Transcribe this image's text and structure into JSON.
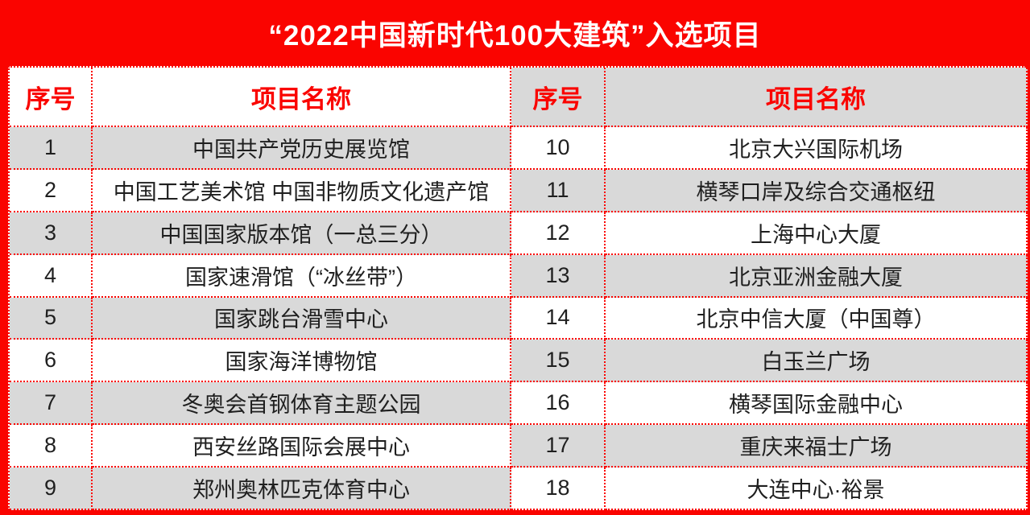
{
  "title": "“2022中国新时代100大建筑”入选项目",
  "colors": {
    "banner_red": "#fa0400",
    "border_red": "#fa0400",
    "band_gray": "#d9d9d9",
    "cell_white": "#ffffff",
    "header_text_red": "#fa0400",
    "body_text": "#1f1f1f",
    "title_text": "#ffffff"
  },
  "table": {
    "left": {
      "headers": {
        "index": "序号",
        "name": "项目名称"
      },
      "rows": [
        {
          "no": "1",
          "name": "中国共产党历史展览馆"
        },
        {
          "no": "2",
          "name": "中国工艺美术馆 中国非物质文化遗产馆"
        },
        {
          "no": "3",
          "name": "中国国家版本馆（一总三分）"
        },
        {
          "no": "4",
          "name": "国家速滑馆（“冰丝带”）"
        },
        {
          "no": "5",
          "name": "国家跳台滑雪中心"
        },
        {
          "no": "6",
          "name": "国家海洋博物馆"
        },
        {
          "no": "7",
          "name": "冬奥会首钢体育主题公园"
        },
        {
          "no": "8",
          "name": "西安丝路国际会展中心"
        },
        {
          "no": "9",
          "name": "郑州奥林匹克体育中心"
        }
      ]
    },
    "right": {
      "headers": {
        "index": "序号",
        "name": "项目名称"
      },
      "rows": [
        {
          "no": "10",
          "name": "北京大兴国际机场"
        },
        {
          "no": "11",
          "name": "横琴口岸及综合交通枢纽"
        },
        {
          "no": "12",
          "name": "上海中心大厦"
        },
        {
          "no": "13",
          "name": "北京亚洲金融大厦"
        },
        {
          "no": "14",
          "name": "北京中信大厦（中国尊）"
        },
        {
          "no": "15",
          "name": "白玉兰广场"
        },
        {
          "no": "16",
          "name": "横琴国际金融中心"
        },
        {
          "no": "17",
          "name": "重庆来福士广场"
        },
        {
          "no": "18",
          "name": "大连中心·裕景"
        }
      ]
    }
  }
}
